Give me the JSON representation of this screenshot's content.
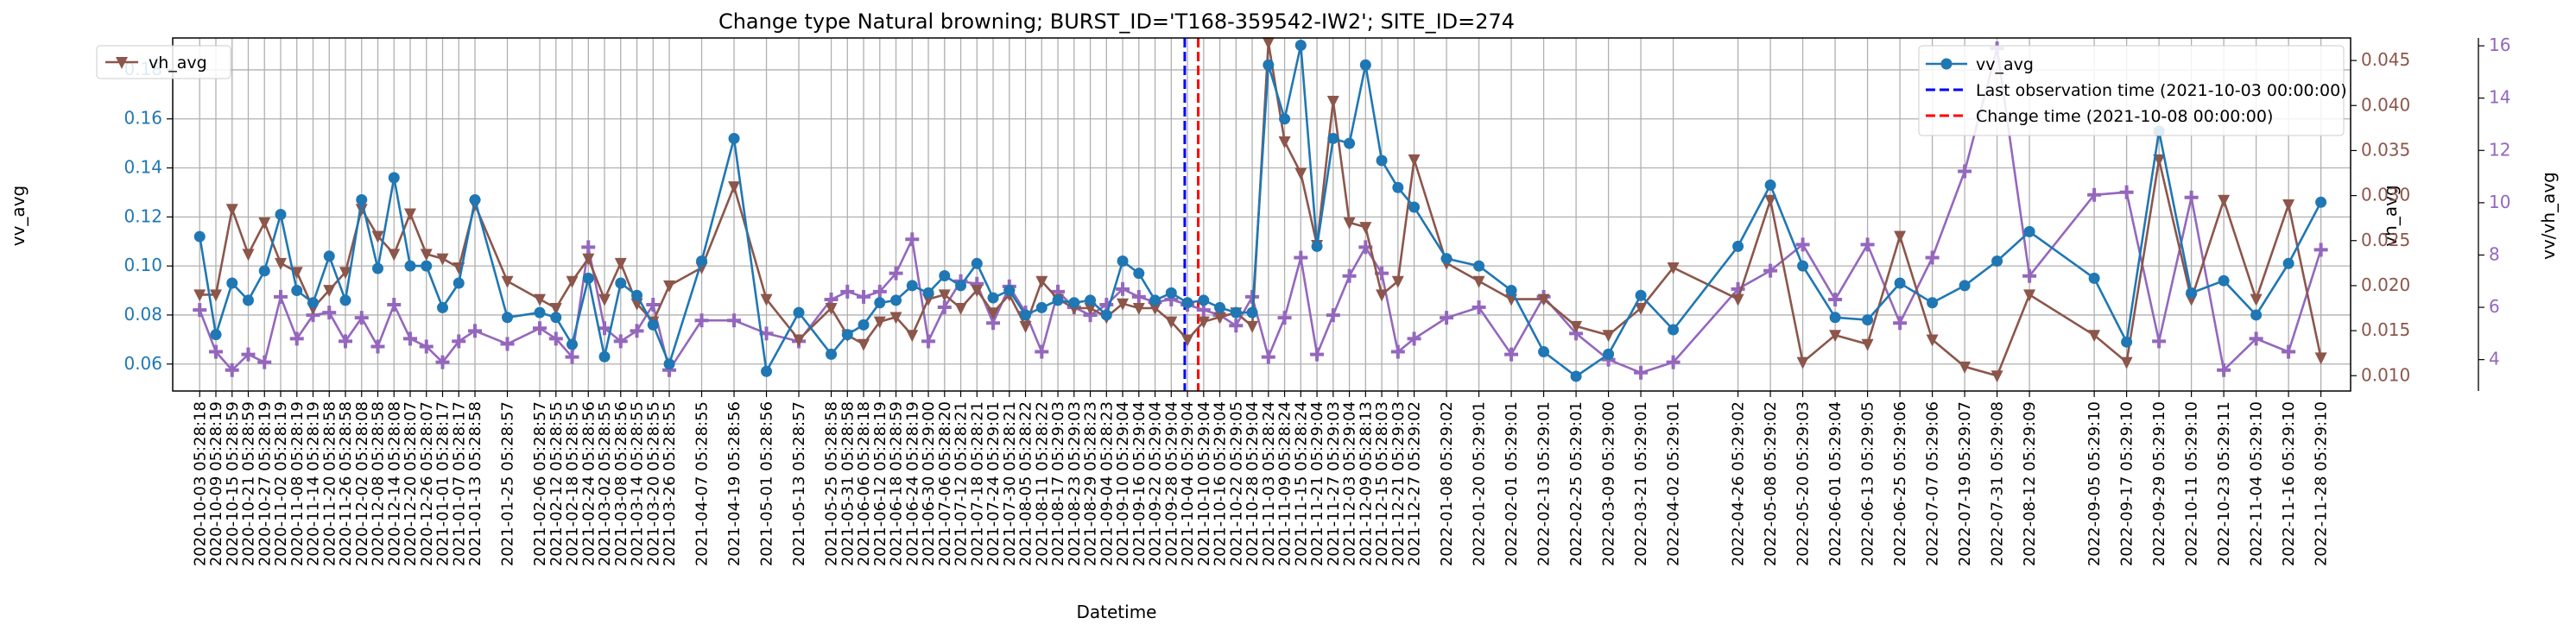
{
  "chart_data": {
    "type": "line",
    "title": "Change type Natural browning; BURST_ID='T168-359542-IW2'; SITE_ID=274",
    "xlabel": "Datetime",
    "x_tick_labels": [
      "2020-10-03 05:28:18",
      "2020-10-09 05:28:19",
      "2020-10-15 05:28:59",
      "2020-10-21 05:28:59",
      "2020-10-27 05:28:19",
      "2020-11-02 05:28:19",
      "2020-11-08 05:28:19",
      "2020-11-14 05:28:19",
      "2020-11-20 05:28:58",
      "2020-11-26 05:28:58",
      "2020-12-02 05:28:08",
      "2020-12-08 05:28:58",
      "2020-12-14 05:28:08",
      "2020-12-20 05:28:07",
      "2020-12-26 05:28:07",
      "2021-01-01 05:28:17",
      "2021-01-07 05:28:17",
      "2021-01-13 05:28:58",
      "2021-01-25 05:28:57",
      "2021-02-06 05:28:57",
      "2021-02-12 05:28:55",
      "2021-02-18 05:28:55",
      "2021-02-24 05:28:56",
      "2021-03-02 05:28:55",
      "2021-03-08 05:28:56",
      "2021-03-14 05:28:55",
      "2021-03-20 05:28:55",
      "2021-03-26 05:28:55",
      "2021-04-07 05:28:55",
      "2021-04-19 05:28:56",
      "2021-05-01 05:28:56",
      "2021-05-13 05:28:57",
      "2021-05-25 05:28:58",
      "2021-05-31 05:28:58",
      "2021-06-06 05:28:18",
      "2021-06-12 05:28:19",
      "2021-06-18 05:28:59",
      "2021-06-24 05:28:19",
      "2021-06-30 05:29:00",
      "2021-07-06 05:28:20",
      "2021-07-12 05:28:21",
      "2021-07-18 05:28:21",
      "2021-07-24 05:29:01",
      "2021-07-30 05:28:21",
      "2021-08-05 05:28:22",
      "2021-08-11 05:28:22",
      "2021-08-17 05:29:03",
      "2021-08-23 05:29:03",
      "2021-08-29 05:28:23",
      "2021-09-04 05:28:23",
      "2021-09-10 05:29:04",
      "2021-09-16 05:29:04",
      "2021-09-22 05:29:04",
      "2021-09-28 05:29:04",
      "2021-10-04 05:29:04",
      "2021-10-10 05:29:04",
      "2021-10-16 05:29:04",
      "2021-10-22 05:29:05",
      "2021-10-28 05:29:04",
      "2021-11-03 05:28:24",
      "2021-11-09 05:28:24",
      "2021-11-15 05:28:24",
      "2021-11-21 05:29:04",
      "2021-11-27 05:29:03",
      "2021-12-03 05:29:04",
      "2021-12-09 05:28:13",
      "2021-12-15 05:28:03",
      "2021-12-21 05:29:03",
      "2021-12-27 05:29:02",
      "2022-01-08 05:29:02",
      "2022-01-20 05:29:01",
      "2022-02-01 05:29:01",
      "2022-02-13 05:29:01",
      "2022-02-25 05:29:01",
      "2022-03-09 05:29:00",
      "2022-03-21 05:29:01",
      "2022-04-02 05:29:01",
      "2022-04-26 05:29:02",
      "2022-05-08 05:29:02",
      "2022-05-20 05:29:03",
      "2022-06-01 05:29:04",
      "2022-06-13 05:29:05",
      "2022-06-25 05:29:06",
      "2022-07-07 05:29:06",
      "2022-07-19 05:29:07",
      "2022-07-31 05:29:08",
      "2022-08-12 05:29:09",
      "2022-09-05 05:29:10",
      "2022-09-17 05:29:10",
      "2022-09-29 05:29:10",
      "2022-10-11 05:29:10",
      "2022-10-23 05:29:11",
      "2022-11-04 05:29:10",
      "2022-11-16 05:29:10",
      "2022-11-28 05:29:10"
    ],
    "x": [
      "2020-10-03",
      "2020-10-09",
      "2020-10-15",
      "2020-10-21",
      "2020-10-27",
      "2020-11-02",
      "2020-11-08",
      "2020-11-14",
      "2020-11-20",
      "2020-11-26",
      "2020-12-02",
      "2020-12-08",
      "2020-12-14",
      "2020-12-20",
      "2020-12-26",
      "2021-01-01",
      "2021-01-07",
      "2021-01-13",
      "2021-01-25",
      "2021-02-06",
      "2021-02-12",
      "2021-02-18",
      "2021-02-24",
      "2021-03-02",
      "2021-03-08",
      "2021-03-14",
      "2021-03-20",
      "2021-03-26",
      "2021-04-07",
      "2021-04-19",
      "2021-05-01",
      "2021-05-13",
      "2021-05-25",
      "2021-05-31",
      "2021-06-06",
      "2021-06-12",
      "2021-06-18",
      "2021-06-24",
      "2021-06-30",
      "2021-07-06",
      "2021-07-12",
      "2021-07-18",
      "2021-07-24",
      "2021-07-30",
      "2021-08-05",
      "2021-08-11",
      "2021-08-17",
      "2021-08-23",
      "2021-08-29",
      "2021-09-04",
      "2021-09-10",
      "2021-09-16",
      "2021-09-22",
      "2021-09-28",
      "2021-10-04",
      "2021-10-10",
      "2021-10-16",
      "2021-10-22",
      "2021-10-28",
      "2021-11-03",
      "2021-11-09",
      "2021-11-15",
      "2021-11-21",
      "2021-11-27",
      "2021-12-03",
      "2021-12-09",
      "2021-12-15",
      "2021-12-21",
      "2021-12-27",
      "2022-01-08",
      "2022-01-20",
      "2022-02-01",
      "2022-02-13",
      "2022-02-25",
      "2022-03-09",
      "2022-03-21",
      "2022-04-02",
      "2022-04-26",
      "2022-05-08",
      "2022-05-20",
      "2022-06-01",
      "2022-06-13",
      "2022-06-25",
      "2022-07-07",
      "2022-07-19",
      "2022-07-31",
      "2022-08-12",
      "2022-09-05",
      "2022-09-17",
      "2022-09-29",
      "2022-10-11",
      "2022-10-23",
      "2022-11-04",
      "2022-11-16",
      "2022-11-28"
    ],
    "x_range": [
      "2020-09-23",
      "2022-12-09"
    ],
    "axes": {
      "left": {
        "label": "vv_avg",
        "color": "#1f77b4",
        "range": [
          0.049,
          0.193
        ],
        "ticks": [
          "0.06",
          "0.08",
          "0.10",
          "0.12",
          "0.14",
          "0.16",
          "0.18"
        ]
      },
      "right": {
        "label": "vh_avg",
        "color": "#8c564b",
        "range": [
          0.0083,
          0.0475
        ],
        "ticks": [
          "0.010",
          "0.015",
          "0.020",
          "0.025",
          "0.030",
          "0.035",
          "0.040",
          "0.045"
        ]
      },
      "right2": {
        "label": "vv/vh_avg",
        "color": "#9467bd",
        "range": [
          2.8,
          16.3
        ],
        "ticks": [
          "4",
          "6",
          "8",
          "10",
          "12",
          "14",
          "16"
        ]
      }
    },
    "series": [
      {
        "name": "vv_avg",
        "axis": "left",
        "color": "#1f77b4",
        "marker": "circle",
        "values": [
          0.112,
          0.072,
          0.093,
          0.086,
          0.098,
          0.121,
          0.09,
          0.085,
          0.104,
          0.086,
          0.127,
          0.099,
          0.136,
          0.1,
          0.1,
          0.083,
          0.093,
          0.127,
          0.079,
          0.081,
          0.079,
          0.068,
          0.095,
          0.063,
          0.093,
          0.088,
          0.076,
          0.06,
          0.102,
          0.152,
          0.057,
          0.081,
          0.064,
          0.072,
          0.076,
          0.085,
          0.086,
          0.092,
          0.089,
          0.096,
          0.092,
          0.101,
          0.087,
          0.09,
          0.08,
          0.083,
          0.086,
          0.085,
          0.086,
          0.08,
          0.102,
          0.097,
          0.086,
          0.089,
          0.085,
          0.086,
          0.083,
          0.081,
          0.081,
          0.182,
          0.16,
          0.19,
          0.108,
          0.152,
          0.15,
          0.182,
          0.143,
          0.132,
          0.124,
          0.103,
          0.1,
          0.09,
          0.065,
          0.055,
          0.064,
          0.088,
          0.074,
          0.108,
          0.133,
          0.1,
          0.079,
          0.078,
          0.093,
          0.085,
          0.092,
          0.102,
          0.114,
          0.095,
          0.069,
          0.155,
          0.089,
          0.094,
          0.08,
          0.101,
          0.126
        ]
      },
      {
        "name": "vh_avg",
        "axis": "right",
        "color": "#8c564b",
        "marker": "triangle-down",
        "values": [
          0.019,
          0.019,
          0.0285,
          0.0235,
          0.027,
          0.0225,
          0.0215,
          0.0175,
          0.0195,
          0.0215,
          0.0285,
          0.0255,
          0.0235,
          0.028,
          0.0235,
          0.023,
          0.022,
          0.029,
          0.0205,
          0.0185,
          0.0175,
          0.0205,
          0.023,
          0.0185,
          0.0225,
          0.018,
          0.016,
          0.02,
          0.022,
          0.031,
          0.0185,
          0.014,
          0.0175,
          0.0145,
          0.0135,
          0.016,
          0.0165,
          0.0145,
          0.0185,
          0.019,
          0.0175,
          0.0195,
          0.017,
          0.019,
          0.0155,
          0.0205,
          0.0185,
          0.0175,
          0.0175,
          0.0165,
          0.018,
          0.0175,
          0.0175,
          0.016,
          0.014,
          0.016,
          0.0165,
          0.017,
          0.0155,
          0.047,
          0.036,
          0.0325,
          0.0245,
          0.0405,
          0.027,
          0.0265,
          0.019,
          0.0205,
          0.034,
          0.0225,
          0.0205,
          0.0185,
          0.0185,
          0.0155,
          0.0145,
          0.0175,
          0.022,
          0.0185,
          0.0295,
          0.0115,
          0.0145,
          0.0135,
          0.0255,
          0.014,
          0.011,
          0.01,
          0.019,
          0.0145,
          0.0115,
          0.034,
          0.0185,
          0.0295,
          0.0185,
          0.029,
          0.012
        ]
      },
      {
        "name": "vv/vh_avg",
        "axis": "right2",
        "color": "#9467bd",
        "marker": "plus",
        "values": [
          5.9,
          4.3,
          3.6,
          4.2,
          3.9,
          6.4,
          4.8,
          5.7,
          5.8,
          4.7,
          5.6,
          4.5,
          6.1,
          4.8,
          4.5,
          3.9,
          4.7,
          5.1,
          4.6,
          5.2,
          4.8,
          4.1,
          8.3,
          5.2,
          4.7,
          5.1,
          6.1,
          3.6,
          5.5,
          5.5,
          5.0,
          4.7,
          6.3,
          6.6,
          6.4,
          6.6,
          7.3,
          8.6,
          4.7,
          6.0,
          7.0,
          6.9,
          5.4,
          6.8,
          5.8,
          4.3,
          6.6,
          6.0,
          5.7,
          6.1,
          6.7,
          6.4,
          6.2,
          6.3,
          6.1,
          5.9,
          5.7,
          5.3,
          6.4,
          4.1,
          5.6,
          7.9,
          4.2,
          5.7,
          7.2,
          8.3,
          7.3,
          4.3,
          4.8,
          5.6,
          6.0,
          4.2,
          6.4,
          5.0,
          4.0,
          3.5,
          3.9,
          6.7,
          7.4,
          8.4,
          6.3,
          8.4,
          5.4,
          7.9,
          11.2,
          15.9,
          7.2,
          10.3,
          10.4,
          4.7,
          10.2,
          3.6,
          4.8,
          4.3,
          8.2
        ]
      }
    ],
    "vlines": [
      {
        "x": "2021-10-03",
        "color": "#0000ff",
        "style": "dashed",
        "label": "Last observation time (2021-10-03 00:00:00)"
      },
      {
        "x": "2021-10-08",
        "color": "#ff0000",
        "style": "dashed",
        "label": "Change time (2021-10-08 00:00:00)"
      }
    ],
    "legends": [
      {
        "position": "top-left",
        "entries": [
          "vh_avg"
        ]
      },
      {
        "position": "top-right",
        "entries": [
          "vv_avg",
          "Last observation time (2021-10-03 00:00:00)",
          "Change time (2021-10-08 00:00:00)"
        ]
      }
    ],
    "grid": true
  }
}
